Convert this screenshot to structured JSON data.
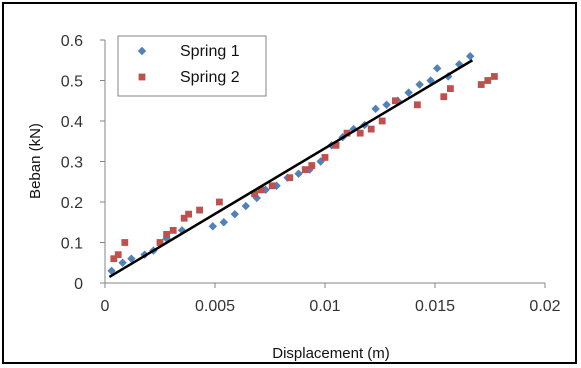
{
  "chart_data": {
    "type": "scatter",
    "xlabel": "Displacement (m)",
    "ylabel": "Beban (kN)",
    "xlim": [
      0,
      0.02
    ],
    "ylim": [
      0,
      0.6
    ],
    "x_ticks": [
      "0",
      "0.005",
      "0.01",
      "0.015",
      "0.02"
    ],
    "y_ticks": [
      "0",
      "0.1",
      "0.2",
      "0.3",
      "0.4",
      "0.5",
      "0.6"
    ],
    "grid": false,
    "legend_placement": "top-left",
    "series": [
      {
        "name": "Spring 1",
        "marker": "diamond",
        "color": "#4f81bd",
        "points": [
          [
            0.0003,
            0.03
          ],
          [
            0.0008,
            0.05
          ],
          [
            0.0012,
            0.06
          ],
          [
            0.0018,
            0.07
          ],
          [
            0.0022,
            0.08
          ],
          [
            0.0028,
            0.11
          ],
          [
            0.0035,
            0.13
          ],
          [
            0.0049,
            0.14
          ],
          [
            0.0054,
            0.15
          ],
          [
            0.0059,
            0.17
          ],
          [
            0.0064,
            0.19
          ],
          [
            0.0069,
            0.21
          ],
          [
            0.0073,
            0.23
          ],
          [
            0.0078,
            0.24
          ],
          [
            0.0083,
            0.26
          ],
          [
            0.0088,
            0.27
          ],
          [
            0.0093,
            0.28
          ],
          [
            0.0098,
            0.3
          ],
          [
            0.0103,
            0.34
          ],
          [
            0.0108,
            0.36
          ],
          [
            0.0113,
            0.38
          ],
          [
            0.0118,
            0.39
          ],
          [
            0.0123,
            0.43
          ],
          [
            0.0128,
            0.44
          ],
          [
            0.0133,
            0.45
          ],
          [
            0.0138,
            0.47
          ],
          [
            0.0143,
            0.49
          ],
          [
            0.0148,
            0.5
          ],
          [
            0.0151,
            0.53
          ],
          [
            0.0156,
            0.51
          ],
          [
            0.0161,
            0.54
          ],
          [
            0.0166,
            0.56
          ]
        ]
      },
      {
        "name": "Spring 2",
        "marker": "square",
        "color": "#c0504d",
        "points": [
          [
            0.0004,
            0.06
          ],
          [
            0.0006,
            0.07
          ],
          [
            0.0009,
            0.1
          ],
          [
            0.0025,
            0.1
          ],
          [
            0.0028,
            0.12
          ],
          [
            0.0031,
            0.13
          ],
          [
            0.0036,
            0.16
          ],
          [
            0.0038,
            0.17
          ],
          [
            0.0043,
            0.18
          ],
          [
            0.0052,
            0.2
          ],
          [
            0.0068,
            0.22
          ],
          [
            0.0071,
            0.23
          ],
          [
            0.0076,
            0.24
          ],
          [
            0.0084,
            0.26
          ],
          [
            0.0091,
            0.28
          ],
          [
            0.0094,
            0.29
          ],
          [
            0.01,
            0.31
          ],
          [
            0.0105,
            0.34
          ],
          [
            0.011,
            0.37
          ],
          [
            0.0116,
            0.37
          ],
          [
            0.0121,
            0.38
          ],
          [
            0.0126,
            0.4
          ],
          [
            0.0132,
            0.45
          ],
          [
            0.0142,
            0.44
          ],
          [
            0.0154,
            0.46
          ],
          [
            0.0157,
            0.48
          ],
          [
            0.0171,
            0.49
          ],
          [
            0.0174,
            0.5
          ],
          [
            0.0177,
            0.51
          ]
        ]
      }
    ],
    "trendline": {
      "x": [
        0.0002,
        0.0167
      ],
      "y": [
        0.015,
        0.55
      ],
      "color": "#000000"
    }
  }
}
